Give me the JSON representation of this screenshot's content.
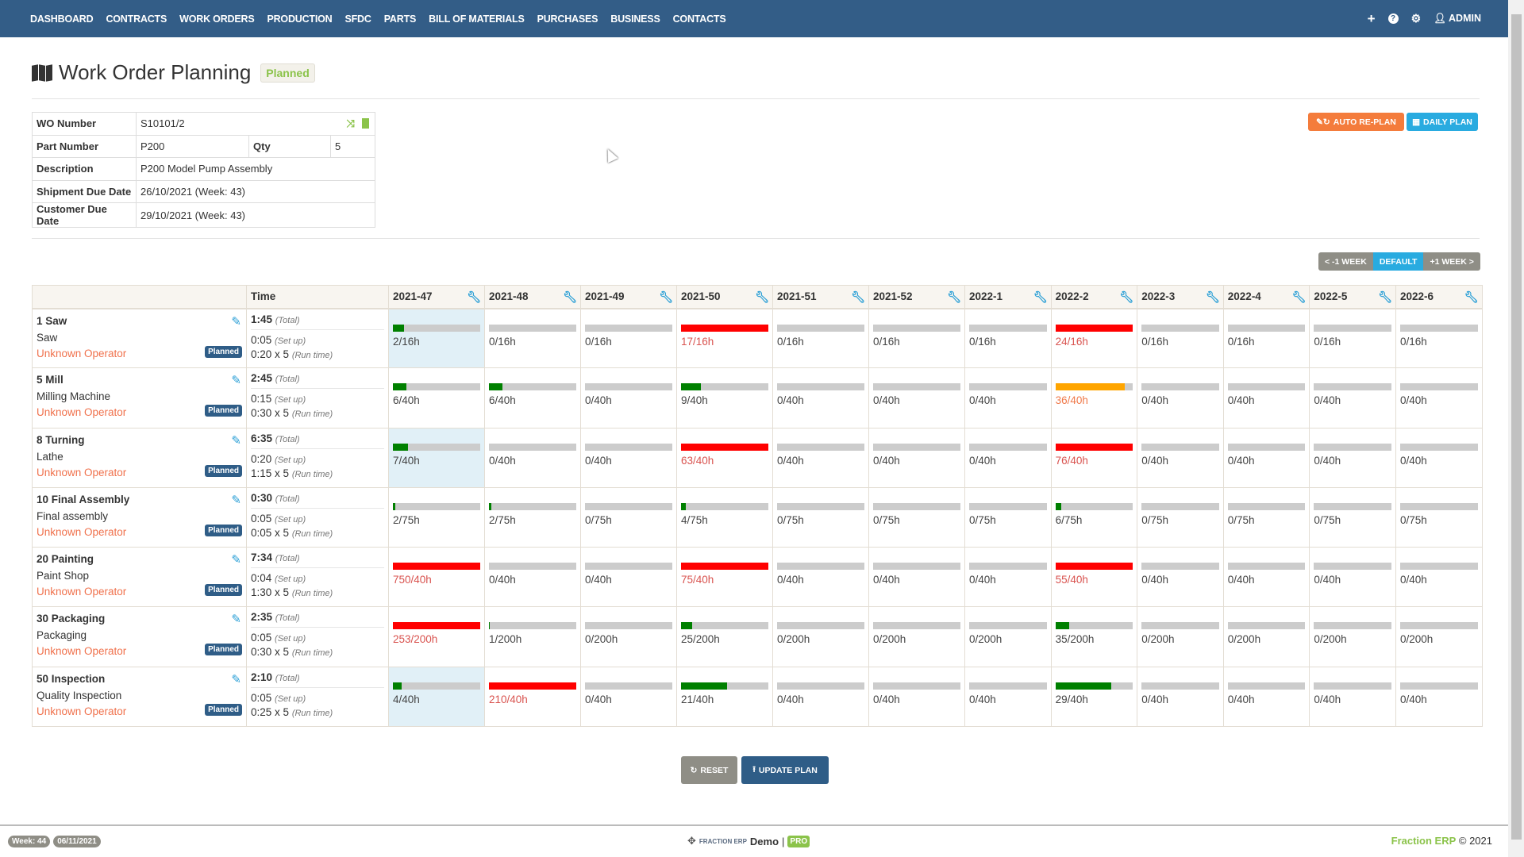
{
  "nav": {
    "items": [
      "DASHBOARD",
      "CONTRACTS",
      "WORK ORDERS",
      "PRODUCTION",
      "SFDC",
      "PARTS",
      "BILL OF MATERIALS",
      "PURCHASES",
      "BUSINESS",
      "CONTACTS"
    ],
    "admin_label": "ADMIN",
    "icons": [
      "plus-icon",
      "question-icon",
      "gear-icon",
      "user-icon"
    ]
  },
  "page": {
    "title": "Work Order Planning",
    "status": "Planned"
  },
  "info": {
    "wo_number_label": "WO Number",
    "wo_number": "S10101/2",
    "part_number_label": "Part Number",
    "part_number": "P200",
    "qty_label": "Qty",
    "qty": "5",
    "description_label": "Description",
    "description": "P200 Model Pump Assembly",
    "shipment_due_label": "Shipment Due Date",
    "shipment_due": "26/10/2021 (Week: 43)",
    "customer_due_label": "Customer Due Date",
    "customer_due": "29/10/2021 (Week: 43)"
  },
  "actions": {
    "auto_replan": "AUTO RE-PLAN",
    "daily_plan": "DAILY PLAN",
    "reset": "RESET",
    "update_plan": "UPDATE PLAN"
  },
  "week_nav": {
    "prev": "< -1 WEEK",
    "default": "DEFAULT",
    "next": "+1 WEEK >",
    "active": "default"
  },
  "colors": {
    "nav": "#335d87",
    "ok": "#008000",
    "warning": "#ffa500",
    "over": "#ff0000",
    "empty": "#cccccc",
    "highlight": "#e1f0f7"
  },
  "grid": {
    "time_header": "Time",
    "total_label": "(Total)",
    "setup_label": "(Set up)",
    "run_label": "(Run time)",
    "weeks": [
      "2021-47",
      "2021-48",
      "2021-49",
      "2021-50",
      "2021-51",
      "2021-52",
      "2022-1",
      "2022-2",
      "2022-3",
      "2022-4",
      "2022-5",
      "2022-6"
    ],
    "rows": [
      {
        "name": "1 Saw",
        "machine": "Saw",
        "operator": "Unknown Operator",
        "badge": "Planned",
        "total": "1:45",
        "setup": "0:05",
        "run": "0:20 x 5",
        "highlight": [
          "2021-47"
        ],
        "cells": [
          "2/16h",
          "0/16h",
          "0/16h",
          "17/16h",
          "0/16h",
          "0/16h",
          "0/16h",
          "24/16h",
          "0/16h",
          "0/16h",
          "0/16h",
          "0/16h"
        ]
      },
      {
        "name": "5 Mill",
        "machine": "Milling Machine",
        "operator": "Unknown Operator",
        "badge": "Planned",
        "total": "2:45",
        "setup": "0:15",
        "run": "0:30 x 5",
        "highlight": [],
        "cells": [
          "6/40h",
          "6/40h",
          "0/40h",
          "9/40h",
          "0/40h",
          "0/40h",
          "0/40h",
          "36/40h",
          "0/40h",
          "0/40h",
          "0/40h",
          "0/40h"
        ]
      },
      {
        "name": "8 Turning",
        "machine": "Lathe",
        "operator": "Unknown Operator",
        "badge": "Planned",
        "total": "6:35",
        "setup": "0:20",
        "run": "1:15 x 5",
        "highlight": [
          "2021-47"
        ],
        "cells": [
          "7/40h",
          "0/40h",
          "0/40h",
          "63/40h",
          "0/40h",
          "0/40h",
          "0/40h",
          "76/40h",
          "0/40h",
          "0/40h",
          "0/40h",
          "0/40h"
        ]
      },
      {
        "name": "10 Final Assembly",
        "machine": "Final assembly",
        "operator": "Unknown Operator",
        "badge": "Planned",
        "total": "0:30",
        "setup": "0:05",
        "run": "0:05 x 5",
        "highlight": [],
        "cells": [
          "2/75h",
          "2/75h",
          "0/75h",
          "4/75h",
          "0/75h",
          "0/75h",
          "0/75h",
          "6/75h",
          "0/75h",
          "0/75h",
          "0/75h",
          "0/75h"
        ]
      },
      {
        "name": "20 Painting",
        "machine": "Paint Shop",
        "operator": "Unknown Operator",
        "badge": "Planned",
        "total": "7:34",
        "setup": "0:04",
        "run": "1:30 x 5",
        "highlight": [],
        "cells": [
          "750/40h",
          "0/40h",
          "0/40h",
          "75/40h",
          "0/40h",
          "0/40h",
          "0/40h",
          "55/40h",
          "0/40h",
          "0/40h",
          "0/40h",
          "0/40h"
        ]
      },
      {
        "name": "30 Packaging",
        "machine": "Packaging",
        "operator": "Unknown Operator",
        "badge": "Planned",
        "total": "2:35",
        "setup": "0:05",
        "run": "0:30 x 5",
        "highlight": [],
        "cells": [
          "253/200h",
          "1/200h",
          "0/200h",
          "25/200h",
          "0/200h",
          "0/200h",
          "0/200h",
          "35/200h",
          "0/200h",
          "0/200h",
          "0/200h",
          "0/200h"
        ]
      },
      {
        "name": "50 Inspection",
        "machine": "Quality Inspection",
        "operator": "Unknown Operator",
        "badge": "Planned",
        "total": "2:10",
        "setup": "0:05",
        "run": "0:25 x 5",
        "highlight": [
          "2021-47"
        ],
        "cells": [
          "4/40h",
          "210/40h",
          "0/40h",
          "21/40h",
          "0/40h",
          "0/40h",
          "0/40h",
          "29/40h",
          "0/40h",
          "0/40h",
          "0/40h",
          "0/40h"
        ]
      }
    ]
  },
  "footer": {
    "week": "Week: 44",
    "date": "06/11/2021",
    "brand": "FRACTION ERP",
    "demo": "Demo",
    "sep": "|",
    "pro": "PRO",
    "right_brand": "Fraction ERP",
    "copyright": "© 2021"
  }
}
